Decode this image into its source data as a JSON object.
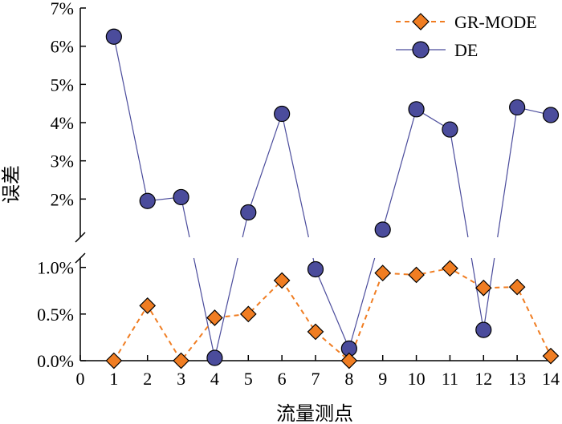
{
  "chart_data": {
    "type": "line",
    "title": "",
    "xlabel": "流量测点",
    "ylabel": "误差",
    "axis_break": true,
    "upper_panel": {
      "ylim_percent": [
        1.0,
        7.0
      ],
      "yticks": [
        "2%",
        "3%",
        "4%",
        "5%",
        "6%",
        "7%"
      ]
    },
    "lower_panel": {
      "ylim_percent": [
        0.0,
        1.1
      ],
      "yticks": [
        "0.0%",
        "0.5%",
        "1.0%"
      ]
    },
    "x": [
      1,
      2,
      3,
      4,
      5,
      6,
      7,
      8,
      9,
      10,
      11,
      12,
      13,
      14
    ],
    "xticks": [
      "0",
      "1",
      "2",
      "3",
      "4",
      "5",
      "6",
      "7",
      "8",
      "9",
      "10",
      "11",
      "12",
      "13",
      "14"
    ],
    "xlim": [
      0,
      14
    ],
    "legend_position": "top-right",
    "series": [
      {
        "name": "GR-MODE",
        "color": "#f07d22",
        "marker": "diamond",
        "line_style": "dashed",
        "values_percent": [
          0.0,
          0.59,
          0.0,
          0.46,
          0.5,
          0.86,
          0.31,
          0.0,
          0.94,
          0.92,
          0.99,
          0.78,
          0.79,
          0.05
        ]
      },
      {
        "name": "DE",
        "color": "#4b4c9c",
        "marker": "circle",
        "line_style": "solid",
        "values_percent": [
          6.25,
          1.95,
          2.05,
          0.03,
          1.65,
          4.23,
          0.98,
          0.13,
          1.2,
          4.35,
          3.82,
          0.33,
          4.4,
          4.2
        ]
      }
    ]
  }
}
